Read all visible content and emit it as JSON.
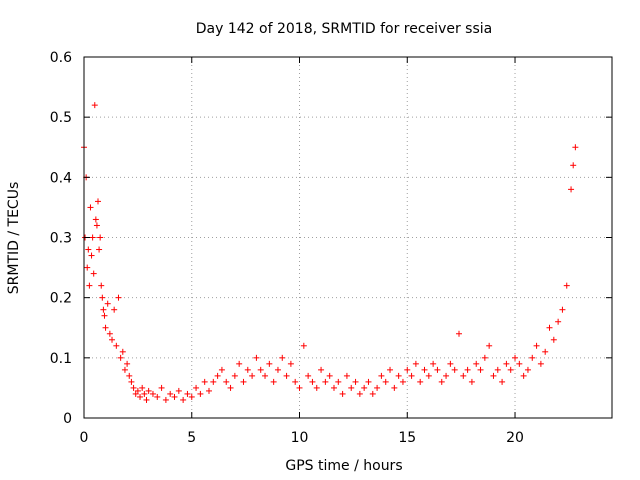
{
  "chart_data": {
    "type": "scatter",
    "title": "Day 142 of 2018, SRMTID for receiver ssia",
    "xlabel": "GPS time / hours",
    "ylabel": "SRMTID / TECUs",
    "xlim": [
      0,
      24.5
    ],
    "ylim": [
      0,
      0.6
    ],
    "xticks": [
      0,
      5,
      10,
      15,
      20
    ],
    "xtick_labels": [
      "0",
      "5",
      "10",
      "15",
      "20"
    ],
    "yticks": [
      0,
      0.1,
      0.2,
      0.3,
      0.4,
      0.5,
      0.6
    ],
    "ytick_labels": [
      "0",
      "0.1",
      "0.2",
      "0.3",
      "0.4",
      "0.5",
      "0.6"
    ],
    "grid": true,
    "marker": "+",
    "color": "#ff0000",
    "series": [
      {
        "name": "SRMTID",
        "x": [
          0.0,
          0.05,
          0.1,
          0.15,
          0.2,
          0.25,
          0.3,
          0.35,
          0.4,
          0.45,
          0.5,
          0.55,
          0.6,
          0.65,
          0.7,
          0.75,
          0.8,
          0.85,
          0.9,
          0.95,
          1.0,
          1.1,
          1.2,
          1.3,
          1.4,
          1.5,
          1.6,
          1.7,
          1.8,
          1.9,
          2.0,
          2.1,
          2.2,
          2.3,
          2.4,
          2.5,
          2.6,
          2.7,
          2.8,
          2.9,
          3.0,
          3.2,
          3.4,
          3.6,
          3.8,
          4.0,
          4.2,
          4.4,
          4.6,
          4.8,
          5.0,
          5.2,
          5.4,
          5.6,
          5.8,
          6.0,
          6.2,
          6.4,
          6.6,
          6.8,
          7.0,
          7.2,
          7.4,
          7.6,
          7.8,
          8.0,
          8.2,
          8.4,
          8.6,
          8.8,
          9.0,
          9.2,
          9.4,
          9.6,
          9.8,
          10.0,
          10.2,
          10.4,
          10.6,
          10.8,
          11.0,
          11.2,
          11.4,
          11.6,
          11.8,
          12.0,
          12.2,
          12.4,
          12.6,
          12.8,
          13.0,
          13.2,
          13.4,
          13.6,
          13.8,
          14.0,
          14.2,
          14.4,
          14.6,
          14.8,
          15.0,
          15.2,
          15.4,
          15.6,
          15.8,
          16.0,
          16.2,
          16.4,
          16.6,
          16.8,
          17.0,
          17.2,
          17.4,
          17.6,
          17.8,
          18.0,
          18.2,
          18.4,
          18.6,
          18.8,
          19.0,
          19.2,
          19.4,
          19.6,
          19.8,
          20.0,
          20.2,
          20.4,
          20.6,
          20.8,
          21.0,
          21.2,
          21.4,
          21.6,
          21.8,
          22.0,
          22.2,
          22.4,
          22.6,
          22.7,
          22.8
        ],
        "y": [
          0.45,
          0.3,
          0.4,
          0.25,
          0.28,
          0.22,
          0.35,
          0.27,
          0.3,
          0.24,
          0.52,
          0.33,
          0.32,
          0.36,
          0.28,
          0.3,
          0.22,
          0.2,
          0.18,
          0.17,
          0.15,
          0.19,
          0.14,
          0.13,
          0.18,
          0.12,
          0.2,
          0.1,
          0.11,
          0.08,
          0.09,
          0.07,
          0.06,
          0.05,
          0.04,
          0.045,
          0.035,
          0.05,
          0.04,
          0.03,
          0.045,
          0.04,
          0.035,
          0.05,
          0.03,
          0.04,
          0.035,
          0.045,
          0.03,
          0.04,
          0.035,
          0.05,
          0.04,
          0.06,
          0.045,
          0.06,
          0.07,
          0.08,
          0.06,
          0.05,
          0.07,
          0.09,
          0.06,
          0.08,
          0.07,
          0.1,
          0.08,
          0.07,
          0.09,
          0.06,
          0.08,
          0.1,
          0.07,
          0.09,
          0.06,
          0.05,
          0.12,
          0.07,
          0.06,
          0.05,
          0.08,
          0.06,
          0.07,
          0.05,
          0.06,
          0.04,
          0.07,
          0.05,
          0.06,
          0.04,
          0.05,
          0.06,
          0.04,
          0.05,
          0.07,
          0.06,
          0.08,
          0.05,
          0.07,
          0.06,
          0.08,
          0.07,
          0.09,
          0.06,
          0.08,
          0.07,
          0.09,
          0.08,
          0.06,
          0.07,
          0.09,
          0.08,
          0.14,
          0.07,
          0.08,
          0.06,
          0.09,
          0.08,
          0.1,
          0.12,
          0.07,
          0.08,
          0.06,
          0.09,
          0.08,
          0.1,
          0.09,
          0.07,
          0.08,
          0.1,
          0.12,
          0.09,
          0.11,
          0.15,
          0.13,
          0.16,
          0.18,
          0.22,
          0.38,
          0.42,
          0.45
        ]
      }
    ]
  }
}
